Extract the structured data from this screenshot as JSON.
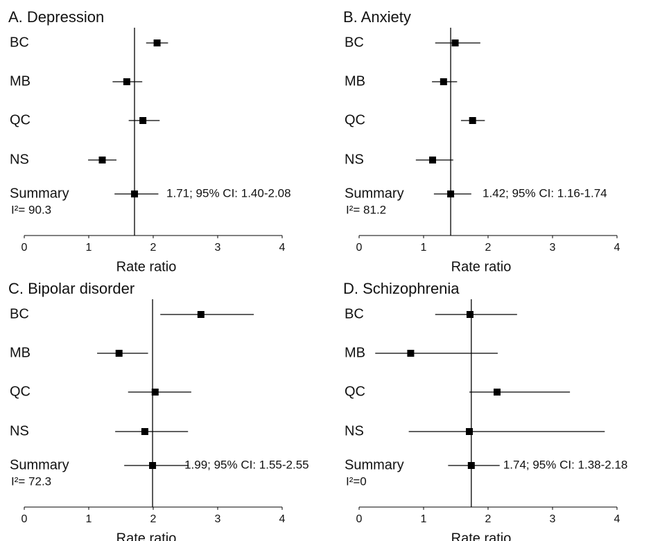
{
  "chart_data": [
    {
      "type": "forest",
      "title": "A. Depression",
      "xlabel": "Rate ratio",
      "categories": [
        "BC",
        "MB",
        "QC",
        "NS",
        "Summary"
      ],
      "values": [
        2.06,
        1.59,
        1.84,
        1.21,
        1.71
      ],
      "lower": [
        1.89,
        1.37,
        1.62,
        0.99,
        1.4
      ],
      "upper": [
        2.23,
        1.83,
        2.1,
        1.43,
        2.08
      ],
      "annotation": "1.71; 95% CI: 1.40-2.08",
      "heterogeneity": "I²= 90.3",
      "xlim": [
        0,
        4
      ],
      "xticks": [
        0,
        1,
        2,
        3,
        4
      ],
      "color": "#000000"
    },
    {
      "type": "forest",
      "title": "B. Anxiety",
      "xlabel": "Rate ratio",
      "categories": [
        "BC",
        "MB",
        "QC",
        "NS",
        "Summary"
      ],
      "values": [
        1.49,
        1.31,
        1.76,
        1.14,
        1.42
      ],
      "lower": [
        1.18,
        1.13,
        1.58,
        0.88,
        1.16
      ],
      "upper": [
        1.88,
        1.52,
        1.95,
        1.46,
        1.74
      ],
      "annotation": "1.42; 95% CI: 1.16-1.74",
      "heterogeneity": "I²= 81.2",
      "xlim": [
        0,
        4
      ],
      "xticks": [
        0,
        1,
        2,
        3,
        4
      ],
      "color": "#000000"
    },
    {
      "type": "forest",
      "title": "C. Bipolar disorder",
      "xlabel": "Rate ratio",
      "categories": [
        "BC",
        "MB",
        "QC",
        "NS",
        "Summary"
      ],
      "values": [
        2.74,
        1.47,
        2.03,
        1.87,
        1.99
      ],
      "lower": [
        2.11,
        1.13,
        1.61,
        1.41,
        1.55
      ],
      "upper": [
        3.56,
        1.92,
        2.59,
        2.54,
        2.55
      ],
      "annotation": "1.99; 95% CI: 1.55-2.55",
      "heterogeneity": "I²= 72.3",
      "xlim": [
        0,
        4
      ],
      "xticks": [
        0,
        1,
        2,
        3,
        4
      ],
      "color": "#000000"
    },
    {
      "type": "forest",
      "title": "D. Schizophrenia",
      "xlabel": "Rate ratio",
      "categories": [
        "BC",
        "MB",
        "QC",
        "NS",
        "Summary"
      ],
      "values": [
        1.72,
        0.8,
        2.14,
        1.71,
        1.74
      ],
      "lower": [
        1.18,
        0.25,
        1.71,
        0.77,
        1.38
      ],
      "upper": [
        2.45,
        2.15,
        3.27,
        3.81,
        2.18
      ],
      "annotation": "1.74; 95% CI: 1.38-2.18",
      "heterogeneity": "I²=0",
      "xlim": [
        0,
        4
      ],
      "xticks": [
        0,
        1,
        2,
        3,
        4
      ],
      "color": "#000000"
    }
  ]
}
